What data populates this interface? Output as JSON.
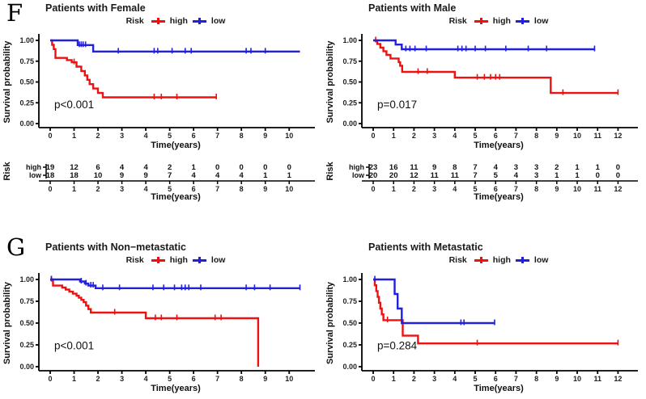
{
  "sections": {
    "f": "F",
    "g": "G"
  },
  "colors": {
    "high": "#EE1111",
    "low": "#2020DD",
    "axis": "#000000",
    "text": "#1A1A1A"
  },
  "chart_data": [
    {
      "type": "line",
      "kind": "kaplan-meier-step",
      "title": "Patients with Female",
      "p_value": "p<0.001",
      "xlabel": "Time(years)",
      "ylabel": "Survival probability",
      "xlim": [
        0,
        10.5
      ],
      "ylim": [
        0,
        1
      ],
      "xticks": [
        0,
        1,
        2,
        3,
        4,
        5,
        6,
        7,
        8,
        9,
        10
      ],
      "yticks": [
        "0.00",
        "0.25",
        "0.50",
        "0.75",
        "1.00"
      ],
      "legend": {
        "title": "Risk",
        "entries": [
          "high",
          "low"
        ]
      },
      "series": [
        {
          "name": "high",
          "color": "#EE1111",
          "steps": [
            [
              0,
              1.0
            ],
            [
              0.08,
              0.947
            ],
            [
              0.15,
              0.895
            ],
            [
              0.22,
              0.789
            ],
            [
              0.7,
              0.763
            ],
            [
              0.9,
              0.737
            ],
            [
              1.1,
              0.684
            ],
            [
              1.3,
              0.632
            ],
            [
              1.45,
              0.579
            ],
            [
              1.55,
              0.526
            ],
            [
              1.65,
              0.474
            ],
            [
              1.8,
              0.421
            ],
            [
              2.0,
              0.368
            ],
            [
              2.2,
              0.316
            ],
            [
              6.95,
              0.316
            ]
          ],
          "censors": [
            [
              1.0,
              0.737
            ],
            [
              4.35,
              0.316
            ],
            [
              4.65,
              0.316
            ],
            [
              5.3,
              0.316
            ],
            [
              6.95,
              0.316
            ]
          ]
        },
        {
          "name": "low",
          "color": "#2020DD",
          "steps": [
            [
              0,
              1.0
            ],
            [
              1.15,
              0.944
            ],
            [
              1.8,
              0.866
            ],
            [
              10.45,
              0.866
            ]
          ],
          "censors": [
            [
              1.22,
              0.944
            ],
            [
              1.3,
              0.944
            ],
            [
              1.38,
              0.944
            ],
            [
              1.48,
              0.944
            ],
            [
              2.85,
              0.866
            ],
            [
              4.35,
              0.866
            ],
            [
              4.5,
              0.866
            ],
            [
              5.1,
              0.866
            ],
            [
              5.65,
              0.866
            ],
            [
              5.9,
              0.866
            ],
            [
              8.2,
              0.866
            ],
            [
              8.4,
              0.866
            ],
            [
              9.0,
              0.866
            ]
          ]
        }
      ],
      "risk_table": {
        "axis_label": "Risk",
        "times": [
          0,
          1,
          2,
          3,
          4,
          5,
          6,
          7,
          8,
          9,
          10
        ],
        "rows": [
          {
            "name": "high",
            "color": "#EE1111",
            "counts": [
              19,
              12,
              6,
              4,
              4,
              2,
              1,
              0,
              0,
              0,
              0
            ]
          },
          {
            "name": "low",
            "color": "#2020DD",
            "counts": [
              18,
              18,
              10,
              9,
              9,
              7,
              4,
              4,
              4,
              1,
              1
            ]
          }
        ],
        "xlabel": "Time(years)"
      }
    },
    {
      "type": "line",
      "kind": "kaplan-meier-step",
      "title": "Patients with Male",
      "p_value": "p=0.017",
      "xlabel": "Time(years)",
      "ylabel": "Survival probability",
      "xlim": [
        0,
        12.3
      ],
      "ylim": [
        0,
        1
      ],
      "xticks": [
        0,
        1,
        2,
        3,
        4,
        5,
        6,
        7,
        8,
        9,
        10,
        11,
        12
      ],
      "yticks": [
        "0.00",
        "0.25",
        "0.50",
        "0.75",
        "1.00"
      ],
      "legend": {
        "title": "Risk",
        "entries": [
          "high",
          "low"
        ]
      },
      "series": [
        {
          "name": "high",
          "color": "#EE1111",
          "steps": [
            [
              0,
              1.0
            ],
            [
              0.2,
              0.957
            ],
            [
              0.35,
              0.913
            ],
            [
              0.5,
              0.87
            ],
            [
              0.65,
              0.826
            ],
            [
              0.85,
              0.783
            ],
            [
              1.25,
              0.739
            ],
            [
              1.32,
              0.695
            ],
            [
              1.42,
              0.621
            ],
            [
              4.0,
              0.552
            ],
            [
              8.7,
              0.368
            ],
            [
              12.0,
              0.368
            ]
          ],
          "censors": [
            [
              0.12,
              1.0
            ],
            [
              2.2,
              0.621
            ],
            [
              2.65,
              0.621
            ],
            [
              5.1,
              0.552
            ],
            [
              5.45,
              0.552
            ],
            [
              5.75,
              0.552
            ],
            [
              6.0,
              0.552
            ],
            [
              6.2,
              0.552
            ],
            [
              9.3,
              0.368
            ],
            [
              12.0,
              0.368
            ]
          ]
        },
        {
          "name": "low",
          "color": "#2020DD",
          "steps": [
            [
              0,
              1.0
            ],
            [
              1.1,
              0.95
            ],
            [
              1.4,
              0.893
            ],
            [
              10.85,
              0.893
            ]
          ],
          "censors": [
            [
              1.6,
              0.893
            ],
            [
              1.8,
              0.893
            ],
            [
              2.05,
              0.893
            ],
            [
              2.6,
              0.893
            ],
            [
              4.15,
              0.893
            ],
            [
              4.35,
              0.893
            ],
            [
              4.55,
              0.893
            ],
            [
              5.0,
              0.893
            ],
            [
              5.5,
              0.893
            ],
            [
              6.5,
              0.893
            ],
            [
              7.6,
              0.893
            ],
            [
              8.5,
              0.893
            ],
            [
              10.85,
              0.893
            ]
          ]
        }
      ],
      "risk_table": {
        "axis_label": "Risk",
        "times": [
          0,
          1,
          2,
          3,
          4,
          5,
          6,
          7,
          8,
          9,
          10,
          11,
          12
        ],
        "rows": [
          {
            "name": "high",
            "color": "#EE1111",
            "counts": [
              23,
              16,
              11,
              9,
              8,
              7,
              4,
              3,
              3,
              2,
              1,
              1,
              0
            ]
          },
          {
            "name": "low",
            "color": "#2020DD",
            "counts": [
              20,
              20,
              12,
              11,
              11,
              7,
              5,
              4,
              3,
              1,
              1,
              0,
              0
            ]
          }
        ],
        "xlabel": "Time(years)"
      }
    },
    {
      "type": "line",
      "kind": "kaplan-meier-step",
      "title": "Patients with Non−metastatic",
      "p_value": "p<0.001",
      "xlabel": "Time(years)",
      "ylabel": "Survival probability",
      "xlim": [
        0,
        10.5
      ],
      "ylim": [
        0,
        1
      ],
      "xticks": [
        0,
        1,
        2,
        3,
        4,
        5,
        6,
        7,
        8,
        9,
        10
      ],
      "yticks": [
        "0.00",
        "0.25",
        "0.50",
        "0.75",
        "1.00"
      ],
      "legend": {
        "title": "Risk",
        "entries": [
          "high",
          "low"
        ]
      },
      "series": [
        {
          "name": "high",
          "color": "#EE1111",
          "steps": [
            [
              0,
              1.0
            ],
            [
              0.12,
              0.93
            ],
            [
              0.5,
              0.907
            ],
            [
              0.65,
              0.884
            ],
            [
              0.8,
              0.86
            ],
            [
              0.95,
              0.837
            ],
            [
              1.1,
              0.814
            ],
            [
              1.2,
              0.791
            ],
            [
              1.3,
              0.767
            ],
            [
              1.4,
              0.74
            ],
            [
              1.5,
              0.7
            ],
            [
              1.6,
              0.66
            ],
            [
              1.7,
              0.62
            ],
            [
              4.0,
              0.556
            ],
            [
              8.7,
              0.0
            ]
          ],
          "censors": [
            [
              0.05,
              1.0
            ],
            [
              2.7,
              0.62
            ],
            [
              4.4,
              0.556
            ],
            [
              4.65,
              0.556
            ],
            [
              5.3,
              0.556
            ],
            [
              6.9,
              0.556
            ],
            [
              7.15,
              0.556
            ]
          ]
        },
        {
          "name": "low",
          "color": "#2020DD",
          "steps": [
            [
              0,
              1.0
            ],
            [
              1.25,
              0.977
            ],
            [
              1.45,
              0.953
            ],
            [
              1.6,
              0.93
            ],
            [
              1.9,
              0.9
            ],
            [
              10.45,
              0.9
            ]
          ],
          "censors": [
            [
              0.05,
              1.0
            ],
            [
              1.3,
              0.977
            ],
            [
              1.5,
              0.953
            ],
            [
              1.7,
              0.93
            ],
            [
              1.8,
              0.93
            ],
            [
              2.2,
              0.9
            ],
            [
              2.9,
              0.9
            ],
            [
              4.3,
              0.9
            ],
            [
              4.75,
              0.9
            ],
            [
              5.2,
              0.9
            ],
            [
              5.5,
              0.9
            ],
            [
              5.65,
              0.9
            ],
            [
              5.8,
              0.9
            ],
            [
              6.3,
              0.9
            ],
            [
              8.2,
              0.9
            ],
            [
              8.55,
              0.9
            ],
            [
              9.2,
              0.9
            ],
            [
              10.45,
              0.9
            ]
          ]
        }
      ],
      "risk_table": null
    },
    {
      "type": "line",
      "kind": "kaplan-meier-step",
      "title": "Patients with Metastatic",
      "p_value": "p=0.284",
      "xlabel": "Time(years)",
      "ylabel": "Survival probability",
      "xlim": [
        0,
        12.3
      ],
      "ylim": [
        0,
        1
      ],
      "xticks": [
        0,
        1,
        2,
        3,
        4,
        5,
        6,
        7,
        8,
        9,
        10,
        11,
        12
      ],
      "yticks": [
        "0.00",
        "0.25",
        "0.50",
        "0.75",
        "1.00"
      ],
      "legend": {
        "title": "Risk",
        "entries": [
          "high",
          "low"
        ]
      },
      "series": [
        {
          "name": "high",
          "color": "#EE1111",
          "steps": [
            [
              0,
              1.0
            ],
            [
              0.08,
              0.933
            ],
            [
              0.15,
              0.867
            ],
            [
              0.22,
              0.8
            ],
            [
              0.28,
              0.733
            ],
            [
              0.35,
              0.667
            ],
            [
              0.42,
              0.6
            ],
            [
              0.5,
              0.533
            ],
            [
              1.45,
              0.356
            ],
            [
              2.2,
              0.267
            ],
            [
              12.0,
              0.267
            ]
          ],
          "censors": [
            [
              0.7,
              0.533
            ],
            [
              5.1,
              0.267
            ],
            [
              12.0,
              0.267
            ]
          ]
        },
        {
          "name": "low",
          "color": "#2020DD",
          "steps": [
            [
              0,
              1.0
            ],
            [
              1.05,
              0.833
            ],
            [
              1.2,
              0.667
            ],
            [
              1.4,
              0.5
            ],
            [
              5.95,
              0.5
            ]
          ],
          "censors": [
            [
              0.08,
              1.0
            ],
            [
              4.3,
              0.5
            ],
            [
              4.45,
              0.5
            ],
            [
              5.95,
              0.5
            ]
          ]
        }
      ],
      "risk_table": null
    }
  ]
}
